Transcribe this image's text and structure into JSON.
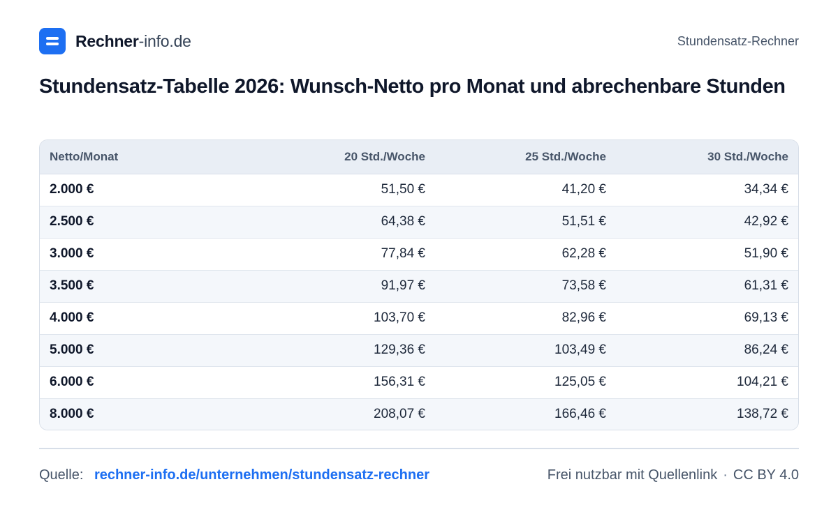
{
  "header": {
    "brand_bold": "Rechner",
    "brand_light": "-info.de",
    "nav_label": "Stundensatz-Rechner",
    "logo_icon": "equals-icon",
    "accent_color": "#1d6ff2"
  },
  "title": "Stundensatz-Tabelle  2026: Wunsch-Netto pro Monat und abrechenbare Stunden",
  "table": {
    "headers": [
      "Netto/Monat",
      "20 Std./Woche",
      "25 Std./Woche",
      "30 Std./Woche"
    ],
    "rows": [
      [
        "2.000 €",
        "51,50 €",
        "41,20 €",
        "34,34 €"
      ],
      [
        "2.500 €",
        "64,38 €",
        "51,51 €",
        "42,92 €"
      ],
      [
        "3.000 €",
        "77,84 €",
        "62,28 €",
        "51,90 €"
      ],
      [
        "3.500 €",
        "91,97 €",
        "73,58 €",
        "61,31 €"
      ],
      [
        "4.000 €",
        "103,70 €",
        "82,96 €",
        "69,13 €"
      ],
      [
        "5.000 €",
        "129,36 €",
        "103,49 €",
        "86,24 €"
      ],
      [
        "6.000 €",
        "156,31 €",
        "125,05 €",
        "104,21 €"
      ],
      [
        "8.000 €",
        "208,07 €",
        "166,46 €",
        "138,72 €"
      ]
    ]
  },
  "footer": {
    "source_label": "Quelle:",
    "source_link": "rechner-info.de/unternehmen/stundensatz-rechner",
    "usage_note": "Frei nutzbar mit Quellenlink",
    "separator": "·",
    "license": "CC BY 4.0"
  }
}
